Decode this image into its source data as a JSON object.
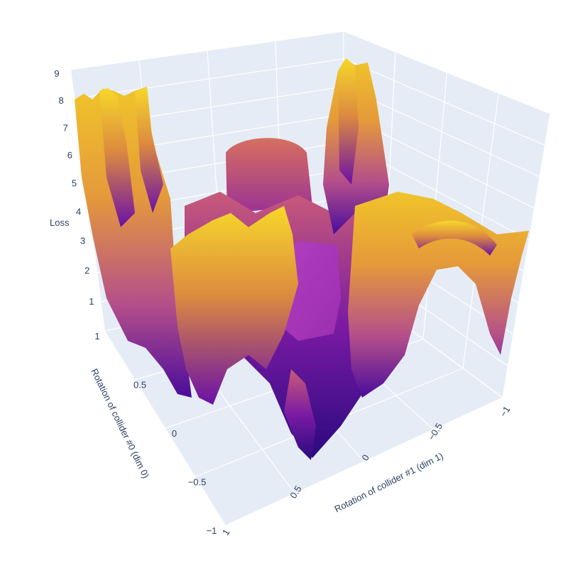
{
  "chart_data": {
    "type": "surface",
    "title": "",
    "colorscale": "plasma",
    "colors": {
      "pane": "#e5ecf6",
      "grid": "#ffffff",
      "text": "#2a3f5f"
    },
    "x_axis": {
      "label": "Rotation of collider #1 (dim 1)",
      "range": [
        -1,
        1
      ],
      "ticks": [
        {
          "value": -1,
          "label": "−1"
        },
        {
          "value": -0.5,
          "label": "−0.5"
        },
        {
          "value": 0,
          "label": "0"
        },
        {
          "value": 0.5,
          "label": "0.5"
        },
        {
          "value": 1,
          "label": "1"
        }
      ]
    },
    "y_axis": {
      "label": "Rotation of collider #0 (dim 0)",
      "range": [
        -1,
        1
      ],
      "ticks": [
        {
          "value": 1,
          "label": "1"
        },
        {
          "value": 0.5,
          "label": "0.5"
        },
        {
          "value": 0,
          "label": "0"
        },
        {
          "value": -0.5,
          "label": "−0.5"
        },
        {
          "value": -1,
          "label": "−1"
        }
      ]
    },
    "z_axis": {
      "label": "Loss",
      "range": [
        0,
        9
      ],
      "ticks": [
        {
          "value": 1,
          "label": "1"
        },
        {
          "value": 2,
          "label": "2"
        },
        {
          "value": 3,
          "label": "3"
        },
        {
          "value": 4,
          "label": "4"
        },
        {
          "value": 5,
          "label": "5"
        },
        {
          "value": 6,
          "label": "6"
        },
        {
          "value": 7,
          "label": "7"
        },
        {
          "value": 8,
          "label": "8"
        },
        {
          "value": 9,
          "label": "9"
        }
      ]
    },
    "surface_summary": {
      "z_min": 0.2,
      "z_max": 8.9,
      "central_plateau_z": 3.2
    }
  }
}
